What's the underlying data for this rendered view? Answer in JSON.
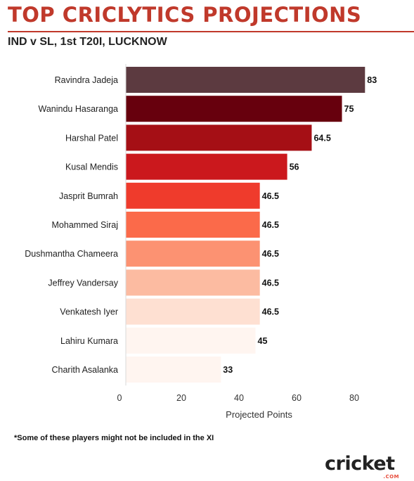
{
  "header": {
    "title": "TOP CRICLYTICS PROJECTIONS",
    "subtitle": "IND v SL, 1st T20I, LUCKNOW",
    "accent_color": "#c0392b"
  },
  "chart_data": {
    "type": "bar",
    "orientation": "horizontal",
    "categories": [
      "Ravindra Jadeja",
      "Wanindu Hasaranga",
      "Harshal Patel",
      "Kusal Mendis",
      "Jasprit Bumrah",
      "Mohammed Siraj",
      "Dushmantha Chameera",
      "Jeffrey Vandersay",
      "Venkatesh Iyer",
      "Lahiru Kumara",
      "Charith Asalanka"
    ],
    "values": [
      83,
      75,
      64.5,
      56,
      46.5,
      46.5,
      46.5,
      46.5,
      46.5,
      45,
      33
    ],
    "data_labels": [
      "83",
      "75",
      "64.5",
      "56",
      "46.5",
      "46.5",
      "46.5",
      "46.5",
      "46.5",
      "45",
      "33"
    ],
    "colors": [
      "#5c3a40",
      "#67000d",
      "#a50f15",
      "#cb181d",
      "#ef3b2c",
      "#fb6a4a",
      "#fc9272",
      "#fcbba1",
      "#fee0d2",
      "#fff5f0",
      "#fff5f0"
    ],
    "xlabel": "Projected Points",
    "xlim": [
      0,
      90
    ],
    "xticks": [
      0,
      20,
      40,
      60,
      80
    ],
    "grid": false,
    "legend": "none"
  },
  "footnote": "*Some of these players might not be included in the XI",
  "logo": {
    "wordmark": "cricket",
    "sub": ".COM",
    "icon": "cricket-com-logo"
  }
}
